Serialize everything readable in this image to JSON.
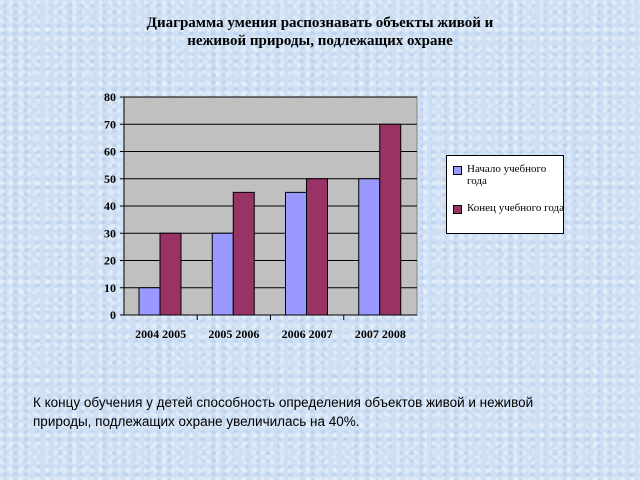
{
  "chart_data": {
    "type": "bar",
    "title_lines": [
      "Диаграмма умения распознавать объекты живой и",
      "неживой природы, подлежащих охране"
    ],
    "categories": [
      "2004 2005",
      "2005 2006",
      "2006 2007",
      "2007 2008"
    ],
    "series": [
      {
        "name": "Начало учебного года",
        "values": [
          10,
          30,
          45,
          50
        ],
        "color": "#9999ff"
      },
      {
        "name": "Конец учебного года",
        "values": [
          30,
          45,
          50,
          70
        ],
        "color": "#993366"
      }
    ],
    "yticks": [
      "0",
      "10",
      "20",
      "30",
      "40",
      "50",
      "60",
      "70",
      "80"
    ],
    "ylim": [
      0,
      80
    ],
    "grid": true,
    "legend_position": "right",
    "plot_background": "#c0c0c0"
  },
  "caption": "К концу обучения у детей способность определения объектов живой и неживой природы, подлежащих охране увеличилась на 40%."
}
